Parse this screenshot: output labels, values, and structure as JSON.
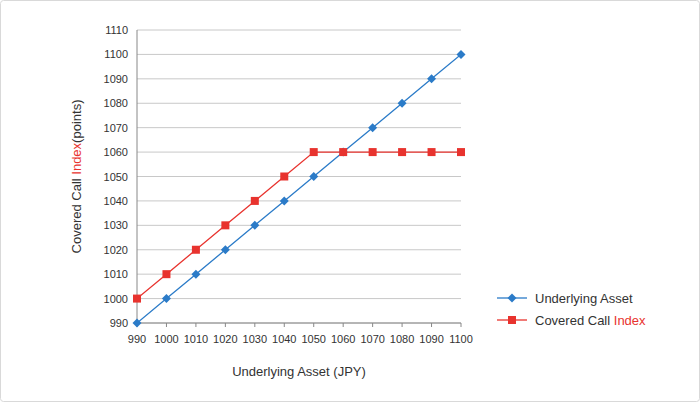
{
  "chart_data": {
    "type": "line",
    "xlabel": "Underlying Asset (JPY)",
    "ylabel": "Covered Call Index(points)",
    "x": [
      990,
      1000,
      1010,
      1020,
      1030,
      1040,
      1050,
      1060,
      1070,
      1080,
      1090,
      1100
    ],
    "series": [
      {
        "name": "Underlying Asset",
        "color": "#2b7bc8",
        "marker": "diamond",
        "values": [
          990,
          1000,
          1010,
          1020,
          1030,
          1040,
          1050,
          1060,
          1070,
          1080,
          1090,
          1100
        ]
      },
      {
        "name": "Covered Call Index",
        "color": "#e8332e",
        "marker": "square",
        "values": [
          1000,
          1010,
          1020,
          1030,
          1040,
          1050,
          1060,
          1060,
          1060,
          1060,
          1060,
          1060
        ]
      }
    ],
    "xlim": [
      990,
      1100
    ],
    "xticks": [
      990,
      1000,
      1010,
      1020,
      1030,
      1040,
      1050,
      1060,
      1070,
      1080,
      1090,
      1100
    ],
    "ylim": [
      990,
      1110
    ],
    "yticks": [
      990,
      1000,
      1010,
      1020,
      1030,
      1040,
      1050,
      1060,
      1070,
      1080,
      1090,
      1100,
      1110
    ],
    "grid": true,
    "legend": "right"
  }
}
